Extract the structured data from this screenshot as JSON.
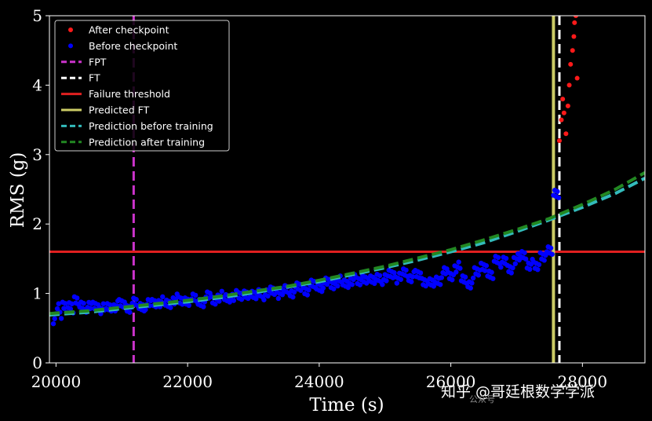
{
  "chart_data": {
    "type": "scatter",
    "xlabel": "Time (s)",
    "ylabel": "RMS (g)",
    "xlim": [
      19900,
      28950
    ],
    "ylim": [
      0,
      5
    ],
    "xticks": [
      "20000",
      "22000",
      "24000",
      "26000",
      "28000"
    ],
    "yticks": [
      "0",
      "1",
      "2",
      "3",
      "4",
      "5"
    ],
    "grid": false,
    "legend_position": "top-left",
    "legend": [
      {
        "label": "After checkpoint",
        "kind": "dot",
        "color": "#ff1a1a"
      },
      {
        "label": "Before checkpoint",
        "kind": "dot",
        "color": "#0000ff"
      },
      {
        "label": "FPT",
        "kind": "dashed",
        "color": "#cc33cc"
      },
      {
        "label": "FT",
        "kind": "dashed",
        "color": "#ffffff"
      },
      {
        "label": "Failure threshold",
        "kind": "solid",
        "color": "#e02020"
      },
      {
        "label": "Predicted FT",
        "kind": "solid",
        "color": "#cccc66"
      },
      {
        "label": "Prediction before training",
        "kind": "dashed",
        "color": "#33bbbb"
      },
      {
        "label": "Prediction after training",
        "kind": "dashed",
        "color": "#228822"
      }
    ],
    "series": [
      {
        "name": "Before checkpoint",
        "color": "#0000ff",
        "x": [
          20000,
          20100,
          20200,
          20300,
          20400,
          20500,
          20600,
          20700,
          20800,
          20900,
          21000,
          21100,
          21200,
          21300,
          21400,
          21500,
          21600,
          21700,
          21800,
          21900,
          22000,
          22100,
          22200,
          22300,
          22400,
          22500,
          22600,
          22700,
          22800,
          22900,
          23000,
          23100,
          23200,
          23300,
          23400,
          23500,
          23600,
          23700,
          23800,
          23900,
          24000,
          24100,
          24200,
          24300,
          24400,
          24500,
          24600,
          24700,
          24800,
          24900,
          25000,
          25100,
          25200,
          25300,
          25400,
          25500,
          25600,
          25700,
          25800,
          25900,
          26000,
          26100,
          26200,
          26300,
          26400,
          26500,
          26600,
          26700,
          26800,
          26900,
          27000,
          27100,
          27200,
          27300,
          27400,
          27500,
          27600
        ],
        "y": [
          0.78,
          0.82,
          0.85,
          0.88,
          0.84,
          0.8,
          0.82,
          0.78,
          0.8,
          0.82,
          0.84,
          0.8,
          0.86,
          0.82,
          0.84,
          0.86,
          0.88,
          0.85,
          0.92,
          0.88,
          0.9,
          0.92,
          0.88,
          0.95,
          0.9,
          0.96,
          0.93,
          0.97,
          0.95,
          1.0,
          0.96,
          1.02,
          0.98,
          1.04,
          1.0,
          1.06,
          1.02,
          1.08,
          1.05,
          1.12,
          1.1,
          1.15,
          1.12,
          1.18,
          1.14,
          1.2,
          1.16,
          1.22,
          1.18,
          1.24,
          1.2,
          1.28,
          1.22,
          1.3,
          1.24,
          1.26,
          1.18,
          1.14,
          1.2,
          1.3,
          1.25,
          1.38,
          1.2,
          1.15,
          1.3,
          1.4,
          1.25,
          1.5,
          1.45,
          1.35,
          1.5,
          1.55,
          1.42,
          1.38,
          1.55,
          1.6,
          2.45
        ]
      },
      {
        "name": "After checkpoint",
        "color": "#ff1a1a",
        "x": [
          27650,
          27680,
          27700,
          27720,
          27750,
          27780,
          27800,
          27820,
          27850,
          27870,
          27880,
          27900,
          27920
        ],
        "y": [
          3.2,
          3.5,
          3.8,
          3.6,
          3.3,
          3.7,
          4.0,
          4.3,
          4.5,
          4.7,
          4.9,
          5.0,
          4.1
        ]
      }
    ],
    "lines": [
      {
        "name": "FPT",
        "type": "vertical",
        "x": 21180,
        "color": "#cc33cc",
        "dashed": true
      },
      {
        "name": "FT",
        "type": "vertical",
        "x": 27650,
        "color": "#ffffff",
        "dashed": true
      },
      {
        "name": "Failure threshold",
        "type": "horizontal",
        "y": 1.6,
        "color": "#e02020",
        "dashed": false
      },
      {
        "name": "Predicted FT",
        "type": "vertical",
        "x": 27560,
        "color": "#cccc66",
        "dashed": false
      }
    ],
    "curves": [
      {
        "name": "Prediction before training",
        "color": "#33bbbb",
        "x": [
          19900,
          20500,
          21000,
          21500,
          22000,
          22500,
          23000,
          23500,
          24000,
          24500,
          25000,
          25500,
          26000,
          26500,
          27000,
          27500,
          28000,
          28500,
          28950
        ],
        "y": [
          0.69,
          0.73,
          0.78,
          0.83,
          0.88,
          0.94,
          1.01,
          1.09,
          1.17,
          1.27,
          1.37,
          1.48,
          1.6,
          1.73,
          1.89,
          2.06,
          2.24,
          2.44,
          2.66
        ]
      },
      {
        "name": "Prediction after training",
        "color": "#228822",
        "x": [
          19900,
          20500,
          21000,
          21500,
          22000,
          22500,
          23000,
          23500,
          24000,
          24500,
          25000,
          25500,
          26000,
          26500,
          27000,
          27500,
          28000,
          28500,
          28950
        ],
        "y": [
          0.71,
          0.75,
          0.8,
          0.85,
          0.9,
          0.96,
          1.03,
          1.1,
          1.19,
          1.29,
          1.39,
          1.51,
          1.63,
          1.77,
          1.92,
          2.08,
          2.28,
          2.5,
          2.74
        ]
      }
    ]
  },
  "watermark": {
    "text": "知乎 @哥廷根数学学派",
    "small_text": "公众号"
  }
}
